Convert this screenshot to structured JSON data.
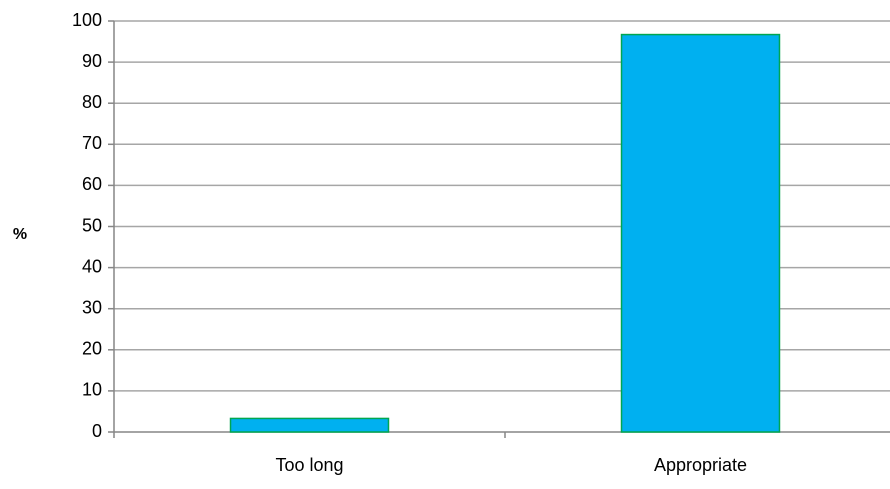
{
  "chart_data": {
    "type": "bar",
    "categories": [
      "Too long",
      "Appropriate"
    ],
    "values": [
      3.3,
      96.7
    ],
    "title": "",
    "xlabel": "",
    "ylabel": "%",
    "ylim": [
      0,
      100
    ],
    "yticks": [
      0,
      10,
      20,
      30,
      40,
      50,
      60,
      70,
      80,
      90,
      100
    ],
    "grid": true,
    "legend": "none"
  },
  "colors": {
    "bar_fill": "#00B0F0",
    "bar_stroke": "#00A651",
    "grid": "#A6A6A6",
    "axis": "#868686"
  }
}
